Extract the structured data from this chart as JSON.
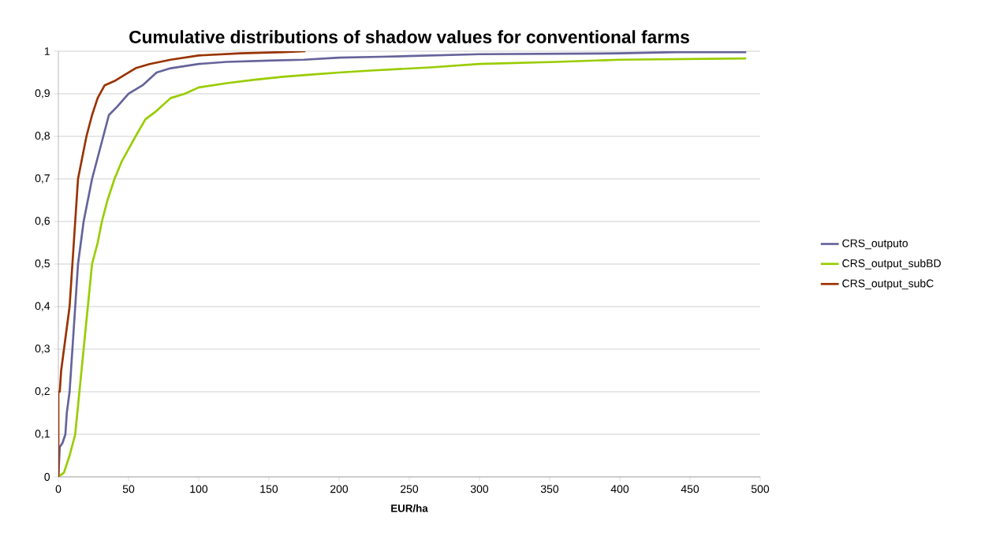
{
  "chart_data": {
    "type": "line",
    "title": "Cumulative distributions of  shadow values for conventional farms",
    "xlabel": "EUR/ha",
    "xlim": [
      0,
      500
    ],
    "ylim": [
      0,
      1
    ],
    "xticks": [
      0,
      50,
      100,
      150,
      200,
      250,
      300,
      350,
      400,
      450,
      500
    ],
    "yticks": [
      0,
      {
        "value": 0.1,
        "label": "0,1"
      },
      {
        "value": 0.2,
        "label": "0,2"
      },
      {
        "value": 0.3,
        "label": "0,3"
      },
      {
        "value": 0.4,
        "label": "0,4"
      },
      {
        "value": 0.5,
        "label": "0,5"
      },
      {
        "value": 0.6,
        "label": "0,6"
      },
      {
        "value": 0.7,
        "label": "0,7"
      },
      {
        "value": 0.8,
        "label": "0,8"
      },
      {
        "value": 0.9,
        "label": "0,9"
      },
      1
    ],
    "grid": "y",
    "legend": "right",
    "marker": "none",
    "line_style": "solid",
    "series": [
      {
        "name": "CRS_outputo",
        "color": "#65639a",
        "x": [
          0,
          1,
          3,
          5,
          6,
          8,
          10,
          12,
          14,
          16,
          18,
          21,
          24,
          28,
          32,
          36,
          42,
          50,
          60,
          70,
          80,
          100,
          120,
          150,
          175,
          200,
          230,
          265,
          300,
          400,
          440,
          490
        ],
        "values": [
          0,
          0.07,
          0.08,
          0.1,
          0.15,
          0.2,
          0.3,
          0.4,
          0.5,
          0.55,
          0.6,
          0.65,
          0.7,
          0.75,
          0.8,
          0.85,
          0.87,
          0.9,
          0.92,
          0.95,
          0.96,
          0.97,
          0.975,
          0.978,
          0.98,
          0.985,
          0.987,
          0.99,
          0.993,
          0.995,
          0.998,
          0.998
        ]
      },
      {
        "name": "CRS_output_subBD",
        "color": "#99cc00",
        "x": [
          0,
          4,
          8,
          12,
          15,
          18,
          21,
          24,
          28,
          31,
          35,
          40,
          45,
          50,
          55,
          62,
          70,
          80,
          90,
          100,
          120,
          140,
          160,
          180,
          200,
          225,
          265,
          300,
          355,
          400,
          490
        ],
        "values": [
          0,
          0.01,
          0.05,
          0.1,
          0.2,
          0.3,
          0.4,
          0.5,
          0.55,
          0.6,
          0.65,
          0.7,
          0.74,
          0.77,
          0.8,
          0.84,
          0.86,
          0.89,
          0.9,
          0.915,
          0.925,
          0.933,
          0.94,
          0.945,
          0.95,
          0.955,
          0.962,
          0.97,
          0.975,
          0.98,
          0.983
        ]
      },
      {
        "name": "CRS_output_subC",
        "color": "#993300",
        "x": [
          0,
          0,
          1,
          2,
          4,
          6,
          8,
          10,
          12,
          14,
          17,
          20,
          24,
          28,
          33,
          40,
          45,
          55,
          65,
          80,
          100,
          130,
          160,
          176
        ],
        "values": [
          0,
          0.2,
          0.2,
          0.25,
          0.3,
          0.35,
          0.4,
          0.5,
          0.6,
          0.7,
          0.75,
          0.8,
          0.85,
          0.89,
          0.92,
          0.93,
          0.94,
          0.96,
          0.97,
          0.98,
          0.99,
          0.995,
          0.998,
          1.0
        ]
      }
    ]
  }
}
